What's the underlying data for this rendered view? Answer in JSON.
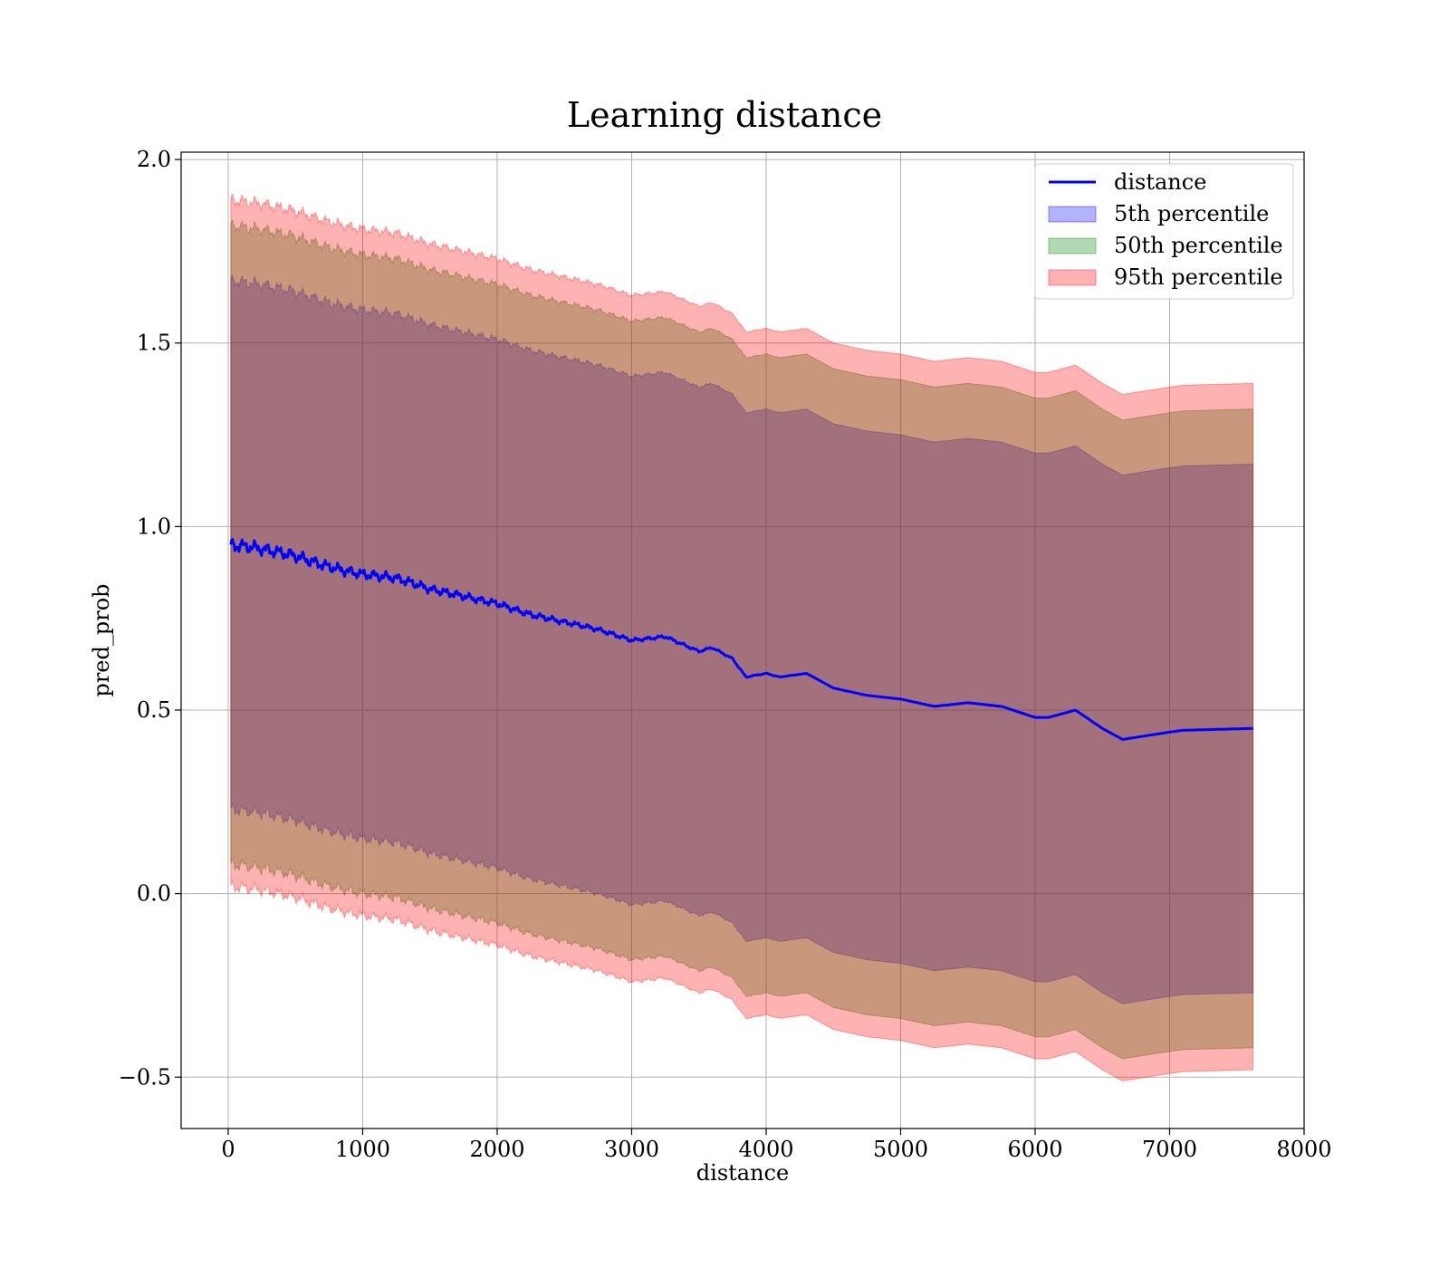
{
  "chart_data": {
    "type": "area",
    "title": "Learning distance",
    "xlabel": "distance",
    "ylabel": "pred_prob",
    "xlim": [
      -350,
      8000
    ],
    "ylim": [
      -0.64,
      2.02
    ],
    "grid": true,
    "legend_position": "top-right",
    "xticks": [
      0,
      1000,
      2000,
      3000,
      4000,
      5000,
      6000,
      7000,
      8000
    ],
    "xtick_labels": [
      "0",
      "1000",
      "2000",
      "3000",
      "4000",
      "5000",
      "6000",
      "7000",
      "8000"
    ],
    "yticks": [
      -0.5,
      0.0,
      0.5,
      1.0,
      1.5,
      2.0
    ],
    "ytick_labels": [
      "−0.5",
      "0.0",
      "0.5",
      "1.0",
      "1.5",
      "2.0"
    ],
    "x": [
      20,
      250,
      500,
      750,
      1000,
      1250,
      1500,
      1750,
      2000,
      2250,
      2500,
      2750,
      3000,
      3250,
      3500,
      3600,
      3750,
      3850,
      4000,
      4100,
      4300,
      4500,
      4750,
      5000,
      5250,
      5500,
      5750,
      6000,
      6100,
      6300,
      6500,
      6650,
      7000,
      7100,
      7620
    ],
    "series": [
      {
        "name": "distance",
        "kind": "line",
        "color": "#0000ff",
        "values": [
          0.95,
          0.94,
          0.92,
          0.89,
          0.87,
          0.86,
          0.83,
          0.81,
          0.79,
          0.76,
          0.74,
          0.72,
          0.69,
          0.7,
          0.66,
          0.67,
          0.64,
          0.59,
          0.6,
          0.59,
          0.6,
          0.56,
          0.54,
          0.53,
          0.51,
          0.52,
          0.51,
          0.48,
          0.48,
          0.5,
          0.45,
          0.42,
          0.44,
          0.445,
          0.45
        ]
      },
      {
        "name": "5th percentile",
        "kind": "band",
        "color": "#0000ff",
        "alpha": 0.3,
        "upper": [
          1.67,
          1.66,
          1.64,
          1.61,
          1.59,
          1.58,
          1.55,
          1.53,
          1.51,
          1.48,
          1.46,
          1.44,
          1.41,
          1.42,
          1.38,
          1.39,
          1.36,
          1.31,
          1.32,
          1.31,
          1.32,
          1.28,
          1.26,
          1.25,
          1.23,
          1.24,
          1.23,
          1.2,
          1.2,
          1.22,
          1.17,
          1.14,
          1.16,
          1.165,
          1.17
        ],
        "lower": [
          0.23,
          0.22,
          0.2,
          0.17,
          0.15,
          0.14,
          0.11,
          0.09,
          0.07,
          0.04,
          0.02,
          0.0,
          -0.03,
          -0.02,
          -0.06,
          -0.05,
          -0.08,
          -0.13,
          -0.12,
          -0.13,
          -0.12,
          -0.16,
          -0.18,
          -0.19,
          -0.21,
          -0.2,
          -0.21,
          -0.24,
          -0.24,
          -0.22,
          -0.27,
          -0.3,
          -0.28,
          -0.275,
          -0.27
        ]
      },
      {
        "name": "50th percentile",
        "kind": "band",
        "color": "#008000",
        "alpha": 0.3,
        "upper": [
          1.82,
          1.81,
          1.79,
          1.76,
          1.74,
          1.73,
          1.7,
          1.68,
          1.66,
          1.63,
          1.61,
          1.59,
          1.56,
          1.57,
          1.53,
          1.54,
          1.51,
          1.46,
          1.47,
          1.46,
          1.47,
          1.43,
          1.41,
          1.4,
          1.38,
          1.39,
          1.38,
          1.35,
          1.35,
          1.37,
          1.32,
          1.29,
          1.31,
          1.315,
          1.32
        ],
        "lower": [
          0.08,
          0.07,
          0.05,
          0.02,
          0.0,
          -0.01,
          -0.04,
          -0.06,
          -0.08,
          -0.11,
          -0.13,
          -0.15,
          -0.18,
          -0.17,
          -0.21,
          -0.2,
          -0.23,
          -0.28,
          -0.27,
          -0.28,
          -0.27,
          -0.31,
          -0.33,
          -0.34,
          -0.36,
          -0.35,
          -0.36,
          -0.39,
          -0.39,
          -0.37,
          -0.42,
          -0.45,
          -0.43,
          -0.425,
          -0.42
        ]
      },
      {
        "name": "95th percentile",
        "kind": "band",
        "color": "#ff0000",
        "alpha": 0.3,
        "upper": [
          1.89,
          1.88,
          1.86,
          1.83,
          1.81,
          1.8,
          1.77,
          1.75,
          1.73,
          1.7,
          1.68,
          1.66,
          1.63,
          1.64,
          1.6,
          1.61,
          1.58,
          1.53,
          1.54,
          1.53,
          1.54,
          1.5,
          1.48,
          1.47,
          1.45,
          1.46,
          1.45,
          1.42,
          1.42,
          1.44,
          1.39,
          1.36,
          1.38,
          1.385,
          1.39
        ],
        "lower": [
          0.02,
          0.01,
          -0.01,
          -0.04,
          -0.06,
          -0.07,
          -0.1,
          -0.12,
          -0.14,
          -0.17,
          -0.19,
          -0.21,
          -0.24,
          -0.23,
          -0.27,
          -0.26,
          -0.29,
          -0.34,
          -0.33,
          -0.34,
          -0.33,
          -0.37,
          -0.39,
          -0.4,
          -0.42,
          -0.41,
          -0.42,
          -0.45,
          -0.45,
          -0.43,
          -0.48,
          -0.51,
          -0.49,
          -0.485,
          -0.48
        ]
      }
    ]
  }
}
